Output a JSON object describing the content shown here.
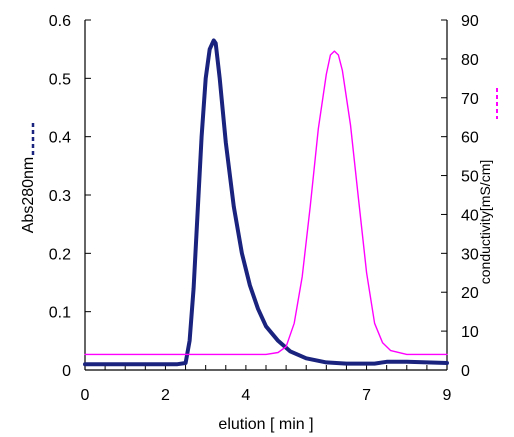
{
  "chart_data": {
    "type": "line",
    "title": "",
    "xlabel": "elution [ min ]",
    "ylabel_left": "Abs280nm",
    "ylabel_right": "conductivity[mS/cm]",
    "xlim": [
      0,
      9
    ],
    "ylim_left": [
      0,
      0.6
    ],
    "ylim_right": [
      0,
      90
    ],
    "x_ticks": [
      0,
      2,
      4,
      7,
      9
    ],
    "x_ticks_minor_step": 0.5,
    "y_left_ticks": [
      "0",
      "0.1",
      "0.2",
      "0.3",
      "0.4",
      "0.5",
      "0.6"
    ],
    "y_right_ticks": [
      "0",
      "10",
      "20",
      "30",
      "40",
      "50",
      "60",
      "70",
      "80",
      "90"
    ],
    "grid": false,
    "series": [
      {
        "name": "Abs280nm",
        "axis": "left",
        "color": "#1a237e",
        "style": "thick-solid",
        "points": [
          [
            0,
            0.01
          ],
          [
            2.3,
            0.01
          ],
          [
            2.5,
            0.012
          ],
          [
            2.6,
            0.05
          ],
          [
            2.7,
            0.14
          ],
          [
            2.8,
            0.27
          ],
          [
            2.9,
            0.4
          ],
          [
            3.0,
            0.5
          ],
          [
            3.1,
            0.55
          ],
          [
            3.2,
            0.565
          ],
          [
            3.25,
            0.56
          ],
          [
            3.35,
            0.5
          ],
          [
            3.5,
            0.39
          ],
          [
            3.7,
            0.28
          ],
          [
            3.9,
            0.2
          ],
          [
            4.1,
            0.145
          ],
          [
            4.3,
            0.105
          ],
          [
            4.5,
            0.075
          ],
          [
            4.8,
            0.05
          ],
          [
            5.1,
            0.032
          ],
          [
            5.5,
            0.02
          ],
          [
            6.0,
            0.013
          ],
          [
            6.5,
            0.011
          ],
          [
            7.2,
            0.011
          ],
          [
            7.5,
            0.014
          ],
          [
            8.0,
            0.014
          ],
          [
            9.0,
            0.012
          ]
        ]
      },
      {
        "name": "conductivity",
        "axis": "right",
        "color": "#ff00ff",
        "style": "thin-solid",
        "points": [
          [
            0,
            4
          ],
          [
            4.5,
            4
          ],
          [
            4.8,
            4.5
          ],
          [
            5.0,
            6
          ],
          [
            5.2,
            12
          ],
          [
            5.4,
            24
          ],
          [
            5.6,
            42
          ],
          [
            5.8,
            62
          ],
          [
            6.0,
            76
          ],
          [
            6.1,
            81
          ],
          [
            6.2,
            82
          ],
          [
            6.3,
            81
          ],
          [
            6.4,
            77
          ],
          [
            6.6,
            63
          ],
          [
            6.8,
            44
          ],
          [
            7.0,
            25
          ],
          [
            7.2,
            12
          ],
          [
            7.4,
            7
          ],
          [
            7.6,
            5
          ],
          [
            8.0,
            4
          ],
          [
            9.0,
            4
          ]
        ]
      }
    ],
    "legend": "inline-dashes-next-to-axis-titles"
  }
}
